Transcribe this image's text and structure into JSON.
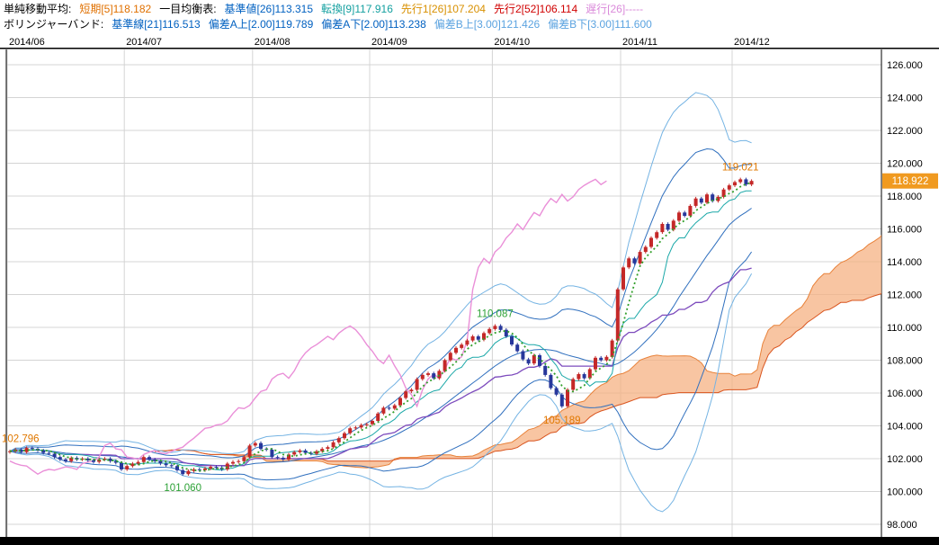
{
  "legend": {
    "row1": [
      {
        "label": "単純移動平均:",
        "color": "#000000"
      },
      {
        "label": "短期[5]118.182",
        "color": "#e07000"
      },
      {
        "label": "一目均衡表:",
        "color": "#000000"
      },
      {
        "label": "基準値[26]113.315",
        "color": "#0060c0"
      },
      {
        "label": "転換[9]117.916",
        "color": "#14a0a0"
      },
      {
        "label": "先行1[26]107.204",
        "color": "#d89000"
      },
      {
        "label": "先行2[52]106.114",
        "color": "#d00000"
      },
      {
        "label": "遅行[26]-----",
        "color": "#da8ada"
      }
    ],
    "row2": [
      {
        "label": "ボリンジャーバンド:",
        "color": "#000000"
      },
      {
        "label": "基準線[21]116.513",
        "color": "#0060c0"
      },
      {
        "label": "偏差A上[2.00]119.789",
        "color": "#0060c0"
      },
      {
        "label": "偏差A下[2.00]113.238",
        "color": "#0060c0"
      },
      {
        "label": "偏差B上[3.00]121.426",
        "color": "#5ba3e0"
      },
      {
        "label": "偏差B下[3.00]111.600",
        "color": "#5ba3e0"
      }
    ]
  },
  "chart_data": {
    "type": "candlestick",
    "title": "",
    "x_axis": {
      "labels": [
        {
          "text": "2014/06",
          "index": 0
        },
        {
          "text": "2014/07",
          "index": 21
        },
        {
          "text": "2014/08",
          "index": 44
        },
        {
          "text": "2014/09",
          "index": 65
        },
        {
          "text": "2014/10",
          "index": 87
        },
        {
          "text": "2014/11",
          "index": 110
        },
        {
          "text": "2014/12",
          "index": 130
        }
      ]
    },
    "y_axis": {
      "min": 98,
      "max": 126,
      "step": 2
    },
    "candles": {
      "first_open": 102.4,
      "up_color": "#c42828",
      "down_color": "#27379b",
      "closes": [
        102.45,
        102.55,
        102.4,
        102.65,
        102.6,
        102.5,
        102.35,
        102.3,
        102.1,
        101.95,
        101.85,
        102.05,
        101.95,
        102.0,
        101.9,
        101.8,
        101.95,
        102.0,
        101.85,
        101.75,
        101.35,
        101.55,
        101.7,
        101.8,
        102.1,
        101.95,
        101.85,
        101.7,
        101.6,
        101.55,
        101.3,
        101.06,
        101.25,
        101.35,
        101.3,
        101.4,
        101.5,
        101.45,
        101.35,
        101.7,
        101.8,
        101.85,
        102.1,
        102.8,
        102.95,
        102.6,
        102.55,
        102.1,
        102.05,
        101.95,
        102.25,
        102.4,
        102.5,
        102.35,
        102.3,
        102.45,
        102.6,
        102.7,
        103.0,
        103.25,
        103.55,
        103.85,
        103.9,
        104.05,
        104.1,
        104.3,
        104.75,
        105.1,
        105.05,
        105.25,
        105.7,
        106.1,
        106.2,
        106.85,
        107.1,
        107.2,
        106.9,
        107.35,
        108.0,
        108.45,
        108.75,
        108.95,
        109.2,
        109.45,
        109.25,
        109.65,
        109.9,
        110.09,
        109.85,
        109.45,
        108.95,
        108.55,
        108.05,
        107.8,
        108.3,
        107.65,
        107.1,
        106.3,
        105.9,
        105.19,
        106.2,
        106.85,
        107.15,
        106.9,
        107.45,
        108.15,
        108.0,
        108.2,
        109.2,
        112.32,
        113.65,
        114.2,
        113.9,
        114.6,
        114.9,
        115.45,
        115.8,
        116.3,
        115.95,
        116.5,
        117.0,
        116.8,
        117.4,
        117.85,
        117.6,
        118.1,
        117.7,
        117.95,
        118.4,
        118.65,
        118.85,
        119.02,
        118.7,
        118.92
      ]
    },
    "overlays": {
      "ichimoku_shift": 26,
      "sma_short": {
        "period": 5,
        "color": "#33a02c",
        "style": "dotted"
      },
      "tenkan": {
        "period": 9,
        "color": "#1ba8a8"
      },
      "kijun": {
        "period": 26,
        "color": "#7d4bbd"
      },
      "bollinger": {
        "period": 21,
        "dev_a": 2,
        "dev_b": 3,
        "color_mid": "#2f6fbe",
        "color_a": "#2f6fbe",
        "color_b": "#74b3e3"
      },
      "senkou_a": {
        "color": "#e8823a"
      },
      "senkou_b": {
        "color": "#d9541e"
      },
      "cloud_fill": "#f5b183",
      "chikou": {
        "color": "#ea8fd8"
      }
    },
    "annotations": [
      {
        "text": "102.796",
        "index": 0,
        "value": 102.8,
        "color": "#e07800",
        "pos": "left"
      },
      {
        "text": "101.060",
        "index": 31,
        "value": 101.06,
        "color": "#2ba135",
        "pos": "below"
      },
      {
        "text": "110.087",
        "index": 87,
        "value": 110.09,
        "color": "#2ba135",
        "pos": "above"
      },
      {
        "text": "105.189",
        "index": 99,
        "value": 105.19,
        "color": "#e07800",
        "pos": "below"
      },
      {
        "text": "119.021",
        "index": 131,
        "value": 119.02,
        "color": "#e07800",
        "pos": "above"
      }
    ],
    "current_price": {
      "value": 118.922,
      "bg": "#f09a20",
      "fg": "#ffffff"
    }
  }
}
